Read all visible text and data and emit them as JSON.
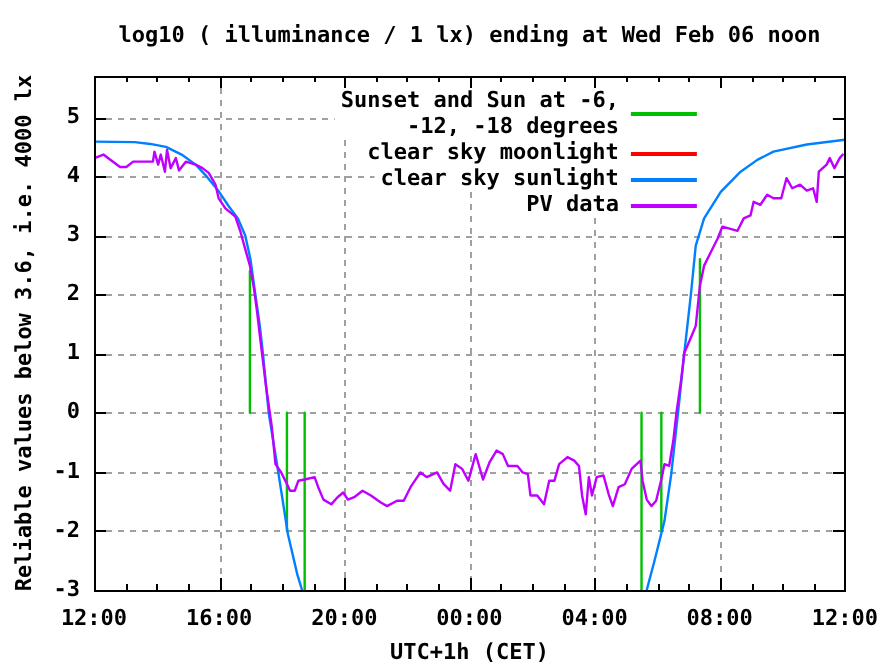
{
  "chart_data": {
    "type": "line",
    "title": "log10 ( illuminance / 1 lx) ending at Wed Feb 06 noon",
    "xlabel": "UTC+1h (CET)",
    "ylabel": "Reliable values below 3.6, i.e. 4000 lx",
    "xlim": [
      "--02-05T12:00",
      "--02-06T12:00"
    ],
    "ylim": [
      -3,
      5.7
    ],
    "xticks": [
      {
        "value": "--02-05T12:00",
        "label": "12:00"
      },
      {
        "value": "--02-05T13:00",
        "label": null
      },
      {
        "value": "--02-05T14:00",
        "label": null
      },
      {
        "value": "--02-05T15:00",
        "label": null
      },
      {
        "value": "--02-05T16:00",
        "label": "16:00"
      },
      {
        "value": "--02-05T17:00",
        "label": null
      },
      {
        "value": "--02-05T18:00",
        "label": null
      },
      {
        "value": "--02-05T19:00",
        "label": null
      },
      {
        "value": "--02-05T20:00",
        "label": "20:00"
      },
      {
        "value": "--02-05T21:00",
        "label": null
      },
      {
        "value": "--02-05T22:00",
        "label": null
      },
      {
        "value": "--02-05T23:00",
        "label": null
      },
      {
        "value": "--02-06T00:00",
        "label": "00:00"
      },
      {
        "value": "--02-06T01:00",
        "label": null
      },
      {
        "value": "--02-06T02:00",
        "label": null
      },
      {
        "value": "--02-06T03:00",
        "label": null
      },
      {
        "value": "--02-06T04:00",
        "label": "04:00"
      },
      {
        "value": "--02-06T05:00",
        "label": null
      },
      {
        "value": "--02-06T06:00",
        "label": null
      },
      {
        "value": "--02-06T07:00",
        "label": null
      },
      {
        "value": "--02-06T08:00",
        "label": "08:00"
      },
      {
        "value": "--02-06T09:00",
        "label": null
      },
      {
        "value": "--02-06T10:00",
        "label": null
      },
      {
        "value": "--02-06T11:00",
        "label": null
      },
      {
        "value": "--02-06T12:00",
        "label": "12:00"
      }
    ],
    "yticks": [
      -3,
      -2,
      -1,
      0,
      1,
      2,
      3,
      4,
      5
    ],
    "grid": true,
    "legend": "top right",
    "series": [
      {
        "name": "Sunset and Sun at -6, -12, -18 degrees",
        "color": "#00c000",
        "x": [
          "--02-05T16:59",
          "--02-05T16:59"
        ],
        "values": [
          0,
          2.4
        ]
      },
      {
        "color": "#00c000",
        "x": [
          "--02-05T18:10",
          "--02-05T18:10"
        ],
        "values": [
          0,
          -2
        ]
      },
      {
        "color": "#00c000",
        "x": [
          "--02-05T18:44",
          "--02-05T18:44"
        ],
        "values": [
          0,
          -3
        ]
      },
      {
        "color": "#00c000",
        "x": [
          "--02-06T05:30",
          "--02-06T05:30"
        ],
        "values": [
          0,
          -3
        ]
      },
      {
        "color": "#00c000",
        "x": [
          "--02-06T06:08",
          "--02-06T06:08"
        ],
        "values": [
          0,
          -2
        ]
      },
      {
        "color": "#00c000",
        "x": [
          "--02-06T07:22",
          "--02-06T07:22"
        ],
        "values": [
          0,
          2.6
        ]
      },
      {
        "name": "clear sky moonlight",
        "color": "#ff0000"
      },
      {
        "name": "clear sky sunlight",
        "color": "#0080ff",
        "x": [
          "--02-05T12:00",
          "--02-05T13:18",
          "--02-05T13:48",
          "--02-05T14:18",
          "--02-05T14:48",
          "--02-05T15:15",
          "--02-05T15:36",
          "--02-05T16:00",
          "--02-05T16:18",
          "--02-05T16:36",
          "--02-05T16:50",
          "--02-05T17:00",
          "--02-05T17:09",
          "--02-05T17:18",
          "--02-05T17:24",
          "--02-05T17:35",
          "--02-05T17:54",
          "--02-05T18:12",
          "--02-05T18:30",
          "--02-05T18:39"
        ],
        "values": [
          4.59,
          4.58,
          4.55,
          4.5,
          4.37,
          4.2,
          4.0,
          3.74,
          3.5,
          3.29,
          3.0,
          2.6,
          2.03,
          1.47,
          1.0,
          0,
          -1.04,
          -2.06,
          -2.74,
          -3
        ]
      },
      {
        "color": "#0080ff",
        "x": [
          "--02-06T05:40",
          "--02-06T05:55",
          "--02-06T06:14",
          "--02-06T06:27",
          "--02-06T06:40",
          "--02-06T06:52",
          "--02-06T07:05",
          "--02-06T07:14",
          "--02-06T07:30",
          "--02-06T08:02",
          "--02-06T08:40",
          "--02-06T09:12",
          "--02-06T09:43",
          "--02-06T10:47",
          "--02-06T12:00"
        ],
        "values": [
          -3,
          -2.5,
          -1.83,
          -1.04,
          0,
          1.01,
          2.03,
          2.83,
          3.29,
          3.74,
          4.08,
          4.28,
          4.42,
          4.54,
          4.62
        ]
      },
      {
        "name": "PV data",
        "color": "#c000ff",
        "x": [
          "--02-05T12:01",
          "--02-05T12:18",
          "--02-05T12:30",
          "--02-05T12:50",
          "--02-05T13:02",
          "--02-05T13:15",
          "--02-05T13:53",
          "--02-05T13:56",
          "--02-05T14:03",
          "--02-05T14:08",
          "--02-05T14:16",
          "--02-05T14:20",
          "--02-05T14:27",
          "--02-05T14:37",
          "--02-05T14:43",
          "--02-05T14:56",
          "--02-05T15:15",
          "--02-05T15:28",
          "--02-05T15:40",
          "--02-05T15:53",
          "--02-05T15:59",
          "--02-05T16:12",
          "--02-05T16:31",
          "--02-05T16:41",
          "--02-05T16:50",
          "--02-05T16:59",
          "--02-05T17:07",
          "--02-05T17:13",
          "--02-05T17:19",
          "--02-05T17:30",
          "--02-05T17:41",
          "--02-05T17:48",
          "--02-05T17:59",
          "--02-05T18:08",
          "--02-05T18:16",
          "--02-05T18:25",
          "--02-05T18:32",
          "--02-05T18:44",
          "--02-05T19:03",
          "--02-05T19:10",
          "--02-05T19:20",
          "--02-05T19:35",
          "--02-05T19:47",
          "--02-05T19:58",
          "--02-05T20:07",
          "--02-05T20:19",
          "--02-05T20:35",
          "--02-05T20:51",
          "--02-05T21:10",
          "--02-05T21:22",
          "--02-05T21:41",
          "--02-05T21:54",
          "--02-05T22:07",
          "--02-05T22:26",
          "--02-05T22:38",
          "--02-05T22:58",
          "--02-05T23:10",
          "--02-05T23:23",
          "--02-05T23:33",
          "--02-05T23:46",
          "--02-05T23:58",
          "--02-06T00:12",
          "--02-06T00:26",
          "--02-06T00:39",
          "--02-06T00:52",
          "--02-06T01:04",
          "--02-06T01:14",
          "--02-06T01:32",
          "--02-06T01:42",
          "--02-06T01:52",
          "--02-06T01:57",
          "--02-06T02:10",
          "--02-06T02:23",
          "--02-06T02:33",
          "--02-06T02:43",
          "--02-06T02:52",
          "--02-06T03:08",
          "--02-06T03:21",
          "--02-06T03:30",
          "--02-06T03:36",
          "--02-06T03:43",
          "--02-06T03:49",
          "--02-06T03:55",
          "--02-06T04:04",
          "--02-06T04:17",
          "--02-06T04:27",
          "--02-06T04:35",
          "--02-06T04:46",
          "--02-06T04:58",
          "--02-06T05:11",
          "--02-06T05:28",
          "--02-06T05:32",
          "--02-06T05:40",
          "--02-06T05:49",
          "--02-06T05:58",
          "--02-06T06:08",
          "--02-06T06:14",
          "--02-06T06:23",
          "--02-06T06:31",
          "--02-06T06:37",
          "--02-06T06:46",
          "--02-06T06:52",
          "--02-06T07:06",
          "--02-06T07:14",
          "--02-06T07:22",
          "--02-06T07:30",
          "--02-06T07:43",
          "--02-06T07:56",
          "--02-06T08:05",
          "--02-06T08:17",
          "--02-06T08:34",
          "--02-06T08:46",
          "--02-06T08:59",
          "--02-06T09:05",
          "--02-06T09:18",
          "--02-06T09:31",
          "--02-06T09:43",
          "--02-06T09:58",
          "--02-06T10:08",
          "--02-06T10:19",
          "--02-06T10:34",
          "--02-06T10:47",
          "--02-06T10:59",
          "--02-06T11:06",
          "--02-06T11:10",
          "--02-06T11:25",
          "--02-06T11:31",
          "--02-06T11:40",
          "--02-06T11:50",
          "--02-06T11:56"
        ],
        "values": [
          4.31,
          4.37,
          4.29,
          4.16,
          4.16,
          4.25,
          4.25,
          4.42,
          4.2,
          4.37,
          4.08,
          4.45,
          4.14,
          4.31,
          4.1,
          4.25,
          4.2,
          4.14,
          4.06,
          3.86,
          3.63,
          3.46,
          3.32,
          3.06,
          2.77,
          2.49,
          2.09,
          1.69,
          1.24,
          0.44,
          -0.24,
          -0.87,
          -1.01,
          -1.17,
          -1.32,
          -1.32,
          -1.15,
          -1.13,
          -1.09,
          -1.26,
          -1.47,
          -1.55,
          -1.43,
          -1.35,
          -1.47,
          -1.43,
          -1.32,
          -1.4,
          -1.52,
          -1.58,
          -1.49,
          -1.49,
          -1.26,
          -1.01,
          -1.09,
          -1.01,
          -1.2,
          -1.32,
          -0.87,
          -0.95,
          -1.15,
          -0.7,
          -1.13,
          -0.83,
          -0.64,
          -0.7,
          -0.9,
          -0.9,
          -1.01,
          -1.04,
          -1.4,
          -1.4,
          -1.55,
          -1.15,
          -1.15,
          -0.87,
          -0.75,
          -0.81,
          -0.9,
          -1.4,
          -1.72,
          -1.09,
          -1.4,
          -1.09,
          -1.06,
          -1.38,
          -1.58,
          -1.26,
          -1.21,
          -0.95,
          -0.81,
          -1.15,
          -1.47,
          -1.58,
          -1.49,
          -1.13,
          -0.87,
          -0.9,
          -0.47,
          0,
          0.56,
          1.01,
          1.3,
          1.47,
          2.15,
          2.49,
          2.72,
          2.95,
          3.15,
          3.12,
          3.08,
          3.29,
          3.34,
          3.57,
          3.52,
          3.69,
          3.63,
          3.63,
          3.97,
          3.8,
          3.86,
          3.76,
          3.8,
          3.57,
          4.08,
          4.2,
          4.31,
          4.14,
          4.31,
          4.37
        ]
      }
    ]
  }
}
